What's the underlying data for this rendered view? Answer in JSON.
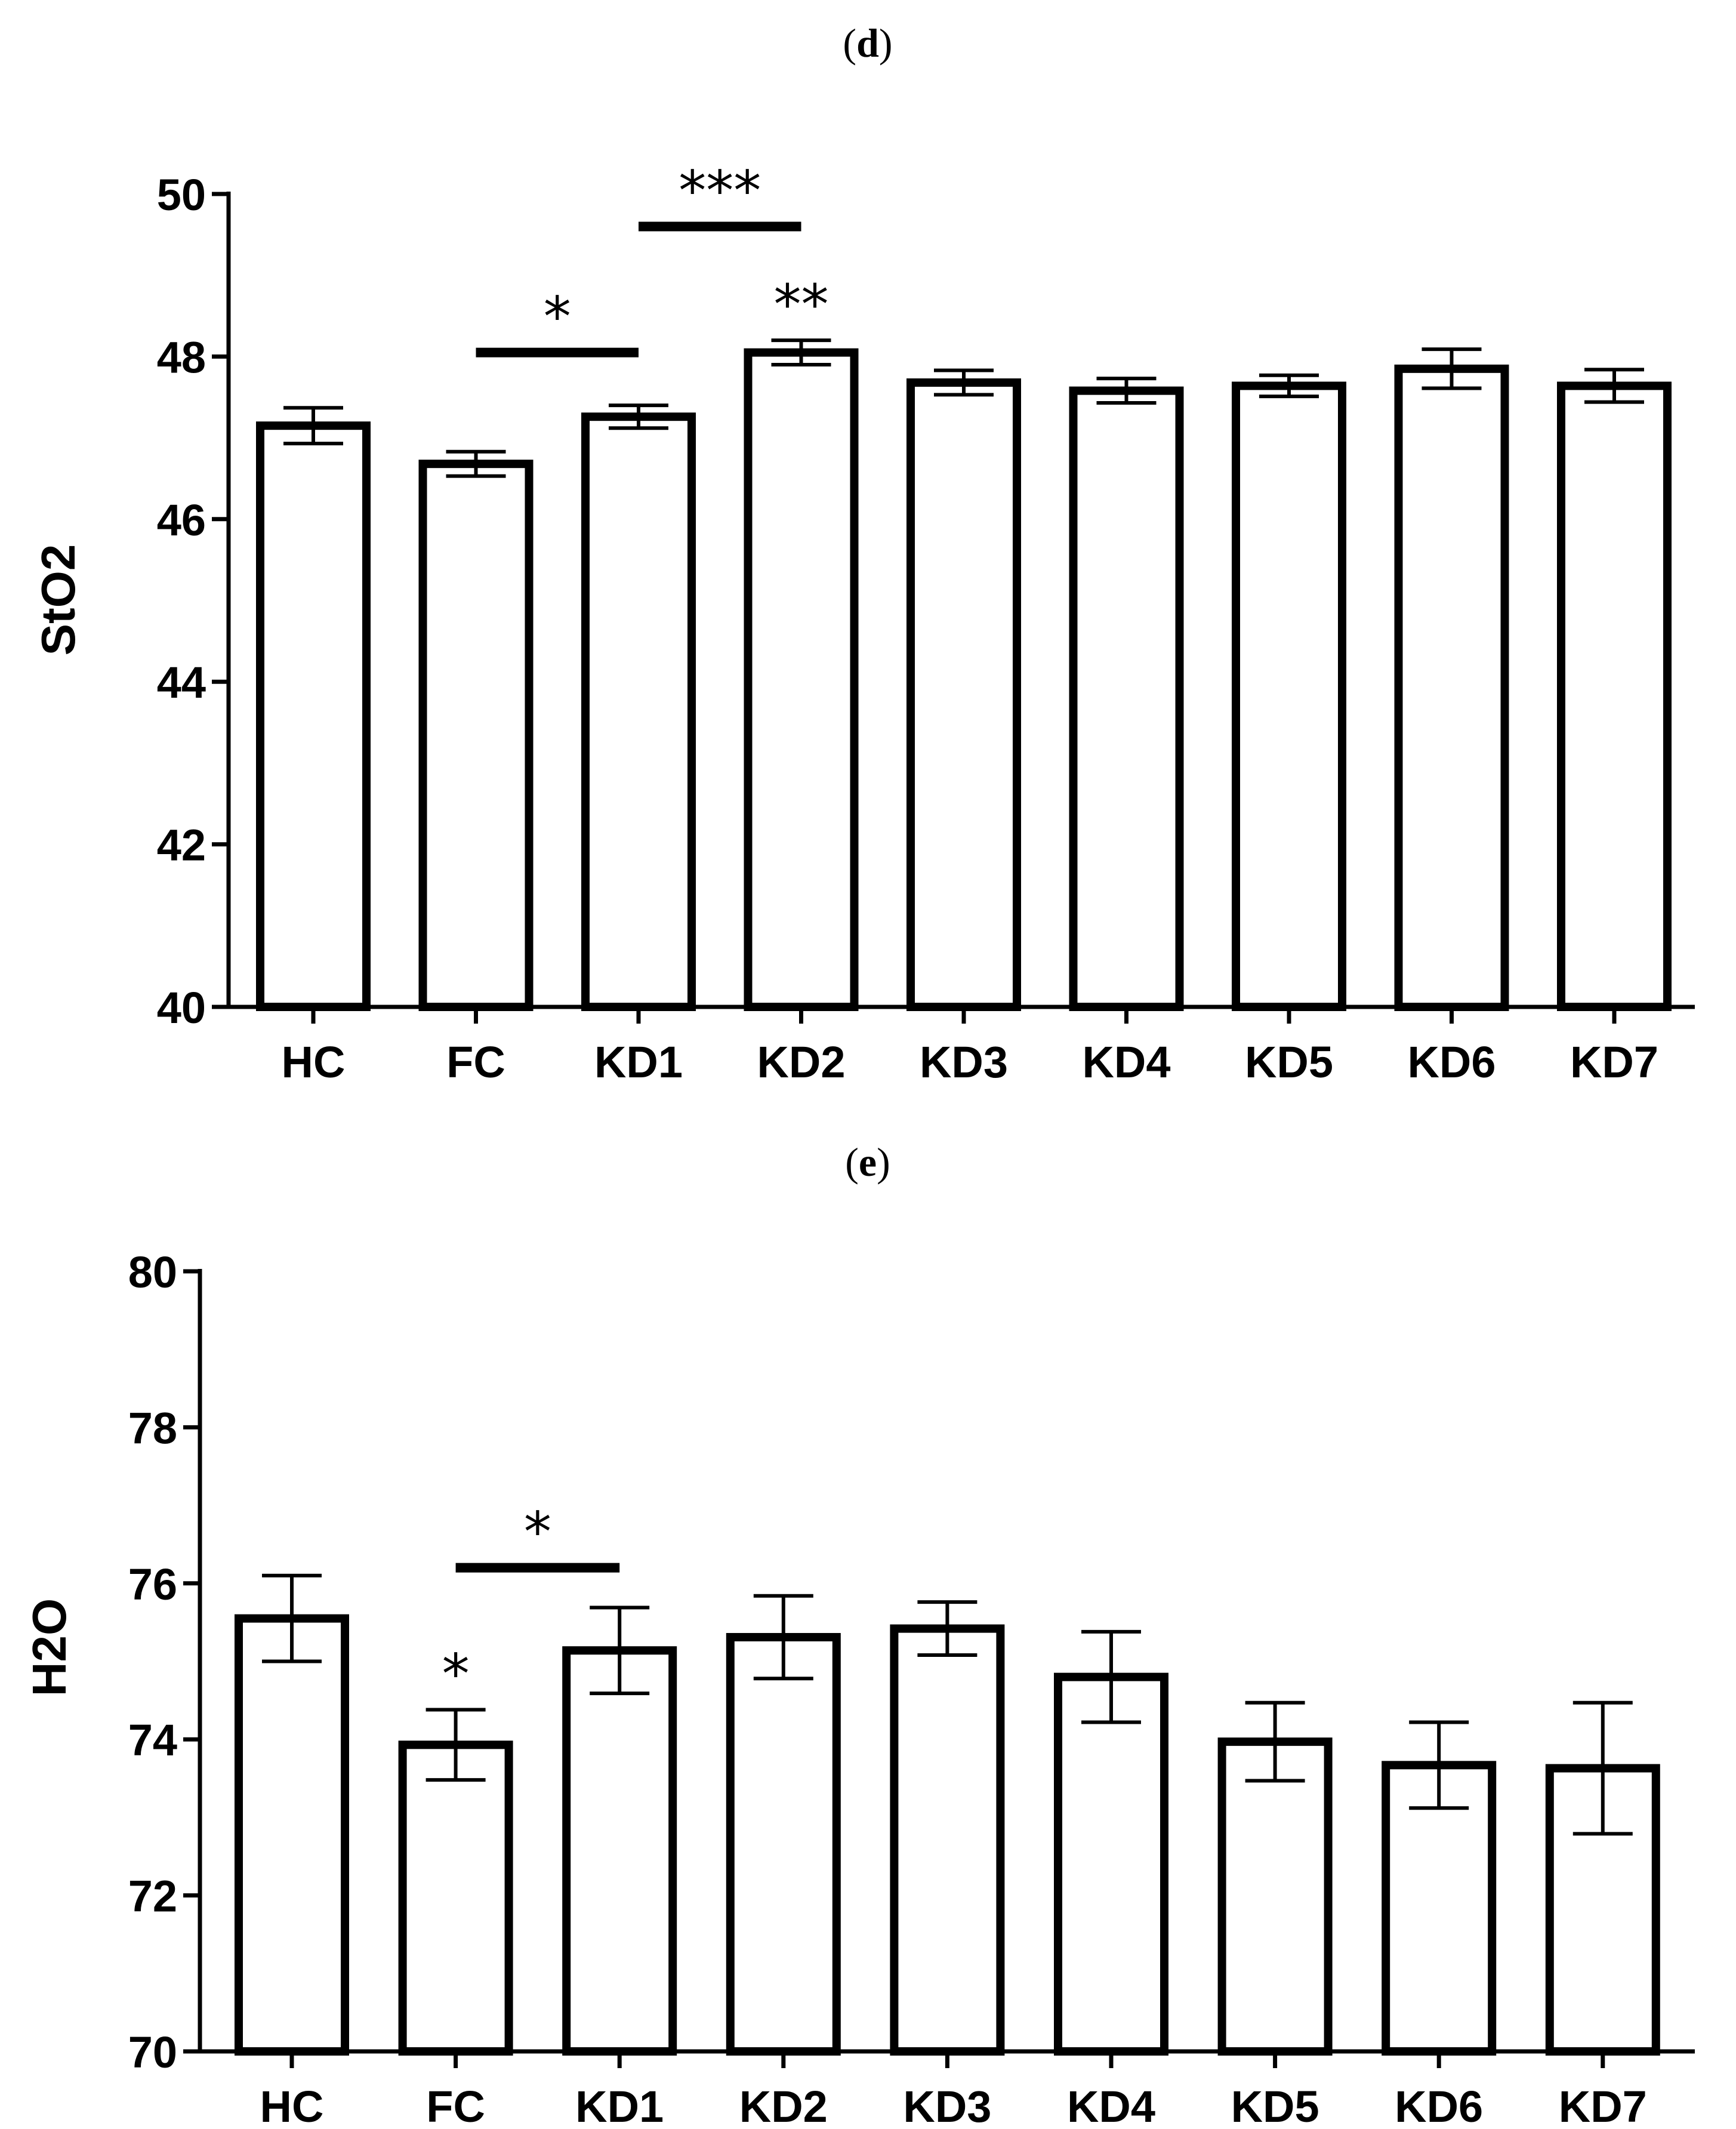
{
  "chart_data": [
    {
      "type": "bar",
      "panel": "d",
      "title": "",
      "xlabel": "",
      "ylabel": "StO2",
      "ylim": [
        40,
        50
      ],
      "yticks": [
        40,
        42,
        44,
        46,
        48,
        50
      ],
      "ytick_labels": [
        "40",
        "42",
        "44",
        "46",
        "48",
        "50"
      ],
      "grid": false,
      "categories": [
        "HC",
        "FC",
        "KD1",
        "KD2",
        "KD3",
        "KD4",
        "KD5",
        "KD6",
        "KD7"
      ],
      "values": [
        47.15,
        46.68,
        47.26,
        48.05,
        47.68,
        47.58,
        47.64,
        47.85,
        47.64
      ],
      "errors": [
        0.22,
        0.15,
        0.14,
        0.15,
        0.15,
        0.15,
        0.13,
        0.24,
        0.2
      ],
      "annotations": [
        {
          "text": "*",
          "type": "bracket",
          "from": "FC",
          "to": "KD1",
          "level": 48.05
        },
        {
          "text": "***",
          "type": "bracket",
          "from": "KD1",
          "to": "KD2",
          "level": 49.6
        },
        {
          "text": "**",
          "type": "above-bar",
          "category": "KD2"
        }
      ]
    },
    {
      "type": "bar",
      "panel": "e",
      "title": "",
      "xlabel": "",
      "ylabel": "H2O",
      "ylim": [
        70,
        80
      ],
      "yticks": [
        70,
        72,
        74,
        76,
        78,
        80
      ],
      "ytick_labels": [
        "70",
        "72",
        "74",
        "76",
        "78",
        "80"
      ],
      "grid": false,
      "categories": [
        "HC",
        "FC",
        "KD1",
        "KD2",
        "KD3",
        "KD4",
        "KD5",
        "KD6",
        "KD7"
      ],
      "values": [
        75.55,
        73.93,
        75.14,
        75.31,
        75.42,
        74.8,
        73.97,
        73.67,
        73.63
      ],
      "errors": [
        0.55,
        0.45,
        0.55,
        0.53,
        0.34,
        0.58,
        0.5,
        0.55,
        0.84
      ],
      "annotations": [
        {
          "text": "*",
          "type": "bracket",
          "from": "FC",
          "to": "KD1",
          "level": 76.2
        },
        {
          "text": "*",
          "type": "above-bar",
          "category": "FC"
        }
      ]
    }
  ],
  "panels": [
    {
      "label_open": "(",
      "label_letter": "d",
      "label_close": ")"
    },
    {
      "label_open": "(",
      "label_letter": "e",
      "label_close": ")"
    }
  ]
}
